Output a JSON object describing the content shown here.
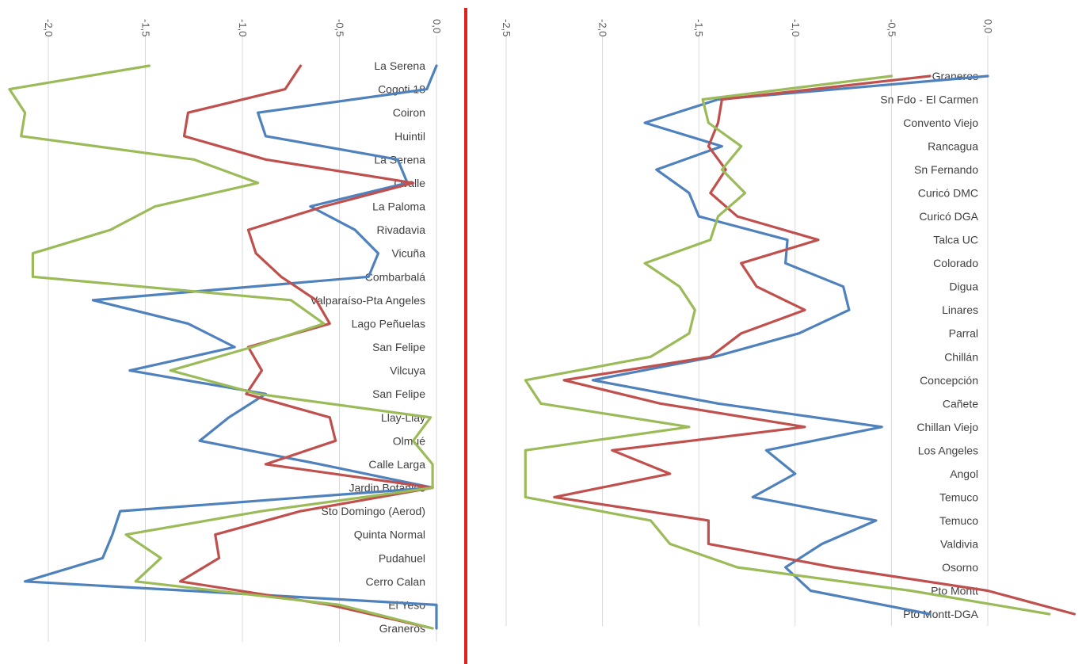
{
  "chart_data": [
    {
      "type": "line",
      "orientation": "rotated",
      "value_axis": {
        "range": [
          -2.1,
          0.05
        ],
        "ticks": [
          "-2,0",
          "-1,5",
          "-1,0",
          "-0,5",
          "0,0"
        ],
        "grid": true,
        "reversed_ticks": true
      },
      "categories": [
        "La Serena",
        "Cogoti 18",
        "Coiron",
        "Huintil",
        "La Serena",
        "Ovalle",
        "La Paloma",
        "Rivadavia",
        "Vicuña",
        "Combarbalá",
        "Valparaíso-Pta Angeles",
        "Lago Peñuelas",
        "San Felipe",
        "Vilcuya",
        "San Felipe",
        "Llay-Llay",
        "Olmué",
        "Calle Larga",
        "Jardin Botánico",
        "Sto Domingo (Aerod)",
        "Quinta Normal",
        "Pudahuel",
        "Cerro Calan",
        "El Yeso",
        "Graneros"
      ],
      "series": [
        {
          "color": "#4f81bd",
          "values": [
            0.0,
            -0.05,
            -0.92,
            -0.88,
            -0.2,
            -0.15,
            -0.65,
            -0.42,
            -0.3,
            -0.35,
            -1.77,
            -1.28,
            -1.04,
            -1.58,
            -0.88,
            -1.07,
            -1.22,
            -0.6,
            -0.02,
            -1.63,
            -1.67,
            -1.72,
            -2.12,
            0.0,
            0.0
          ]
        },
        {
          "color": "#c0504d",
          "values": [
            -0.7,
            -0.78,
            -1.28,
            -1.3,
            -0.88,
            -0.12,
            -0.58,
            -0.97,
            -0.93,
            -0.8,
            -0.62,
            -0.55,
            -0.97,
            -0.9,
            -0.98,
            -0.55,
            -0.52,
            -0.88,
            -0.02,
            -0.7,
            -1.14,
            -1.12,
            -1.32,
            -0.55,
            -0.02
          ]
        },
        {
          "color": "#9bbb59",
          "values": [
            -1.48,
            -2.2,
            -2.12,
            -2.14,
            -1.25,
            -0.92,
            -1.45,
            -1.68,
            -2.08,
            -2.08,
            -0.75,
            -0.58,
            -0.95,
            -1.37,
            -0.92,
            -0.03,
            -0.12,
            -0.02,
            -0.02,
            -0.9,
            -1.6,
            -1.42,
            -1.55,
            -0.5,
            -0.02
          ]
        }
      ]
    },
    {
      "type": "line",
      "orientation": "rotated",
      "value_axis": {
        "range": [
          -2.55,
          0.45
        ],
        "ticks": [
          "-2,5",
          "-2,0",
          "-1,5",
          "-1,0",
          "-0,5",
          "0,0"
        ],
        "grid": true,
        "reversed_ticks": true
      },
      "categories": [
        "Graneros",
        "Sn Fdo - El Carmen",
        "Convento Viejo",
        "Rancagua",
        "Sn Fernando",
        "Curicó DMC",
        "Curicó DGA",
        "Talca UC",
        "Colorado",
        "Digua",
        "Linares",
        "Parral",
        "Chillán",
        "Concepción",
        "Cañete",
        "Chillan Viejo",
        "Los Angeles",
        "Angol",
        "Temuco",
        "Temuco",
        "Valdivia",
        "Osorno",
        "Pto Montt",
        "Pto Montt-DGA"
      ],
      "series": [
        {
          "color": "#4f81bd",
          "values": [
            0.0,
            -1.4,
            -1.78,
            -1.38,
            -1.72,
            -1.55,
            -1.5,
            -1.04,
            -1.05,
            -0.75,
            -0.72,
            -0.98,
            -1.42,
            -2.05,
            -1.4,
            -0.55,
            -1.15,
            -1.0,
            -1.22,
            -0.58,
            -0.86,
            -1.05,
            -0.92,
            -0.3
          ]
        },
        {
          "color": "#c0504d",
          "values": [
            -0.3,
            -1.38,
            -1.4,
            -1.45,
            -1.36,
            -1.44,
            -1.3,
            -0.88,
            -1.28,
            -1.2,
            -0.95,
            -1.28,
            -1.44,
            -2.2,
            -1.7,
            -0.95,
            -1.95,
            -1.65,
            -2.25,
            -1.45,
            -1.45,
            -0.8,
            0.0,
            0.45
          ]
        },
        {
          "color": "#9bbb59",
          "values": [
            -0.5,
            -1.48,
            -1.45,
            -1.28,
            -1.38,
            -1.26,
            -1.4,
            -1.44,
            -1.78,
            -1.6,
            -1.52,
            -1.55,
            -1.75,
            -2.4,
            -2.32,
            -1.55,
            -2.4,
            -2.4,
            -2.4,
            -1.75,
            -1.65,
            -1.3,
            -0.4,
            0.32
          ]
        }
      ]
    }
  ]
}
